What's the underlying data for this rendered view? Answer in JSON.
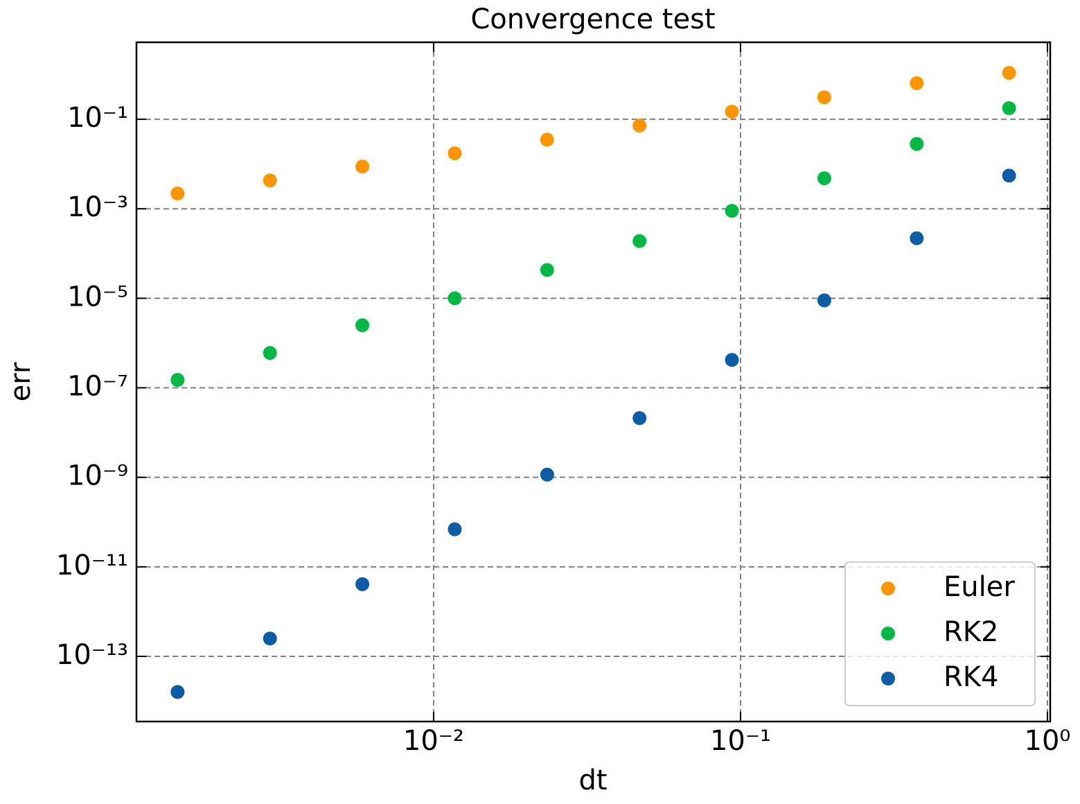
{
  "chart_data": {
    "type": "scatter",
    "title": "Convergence test",
    "x_label": "dt",
    "y_label": "err",
    "x_scale": "log",
    "y_scale": "log",
    "grid": true,
    "legend_position": "lower right",
    "x": [
      0.00146484375,
      0.0029296875,
      0.005859375,
      0.01171875,
      0.0234375,
      0.046875,
      0.09375,
      0.1875,
      0.375,
      0.75
    ],
    "series": [
      {
        "name": "Euler",
        "color": "#ff9500",
        "values": [
          0.0022,
          0.0043,
          0.0088,
          0.0174,
          0.035,
          0.072,
          0.148,
          0.31,
          0.64,
          1.09
        ]
      },
      {
        "name": "RK2",
        "color": "#00b945",
        "values": [
          1.5e-07,
          6e-07,
          2.5e-06,
          1e-05,
          4.3e-05,
          0.00019,
          0.0009,
          0.0048,
          0.028,
          0.177
        ]
      },
      {
        "name": "RK4",
        "color": "#0c5da5",
        "values": [
          1.6e-14,
          2.5e-13,
          4.1e-12,
          6.9e-11,
          1.15e-09,
          2.1e-08,
          4.2e-07,
          9e-06,
          0.00022,
          0.0055
        ]
      }
    ],
    "xlim": [
      0.001076,
      1.021
    ],
    "ylim": [
      3.5e-15,
      5.25
    ],
    "xticks": [
      {
        "value": 0.01,
        "label": "10⁻²"
      },
      {
        "value": 0.1,
        "label": "10⁻¹"
      },
      {
        "value": 1,
        "label": "10⁰"
      }
    ],
    "yticks": [
      {
        "value": 1e-13,
        "label": "10⁻¹³"
      },
      {
        "value": 1e-11,
        "label": "10⁻¹¹"
      },
      {
        "value": 1e-09,
        "label": "10⁻⁹"
      },
      {
        "value": 1e-07,
        "label": "10⁻⁷"
      },
      {
        "value": 1e-05,
        "label": "10⁻⁵"
      },
      {
        "value": 0.001,
        "label": "10⁻³"
      },
      {
        "value": 0.1,
        "label": "10⁻¹"
      }
    ]
  }
}
